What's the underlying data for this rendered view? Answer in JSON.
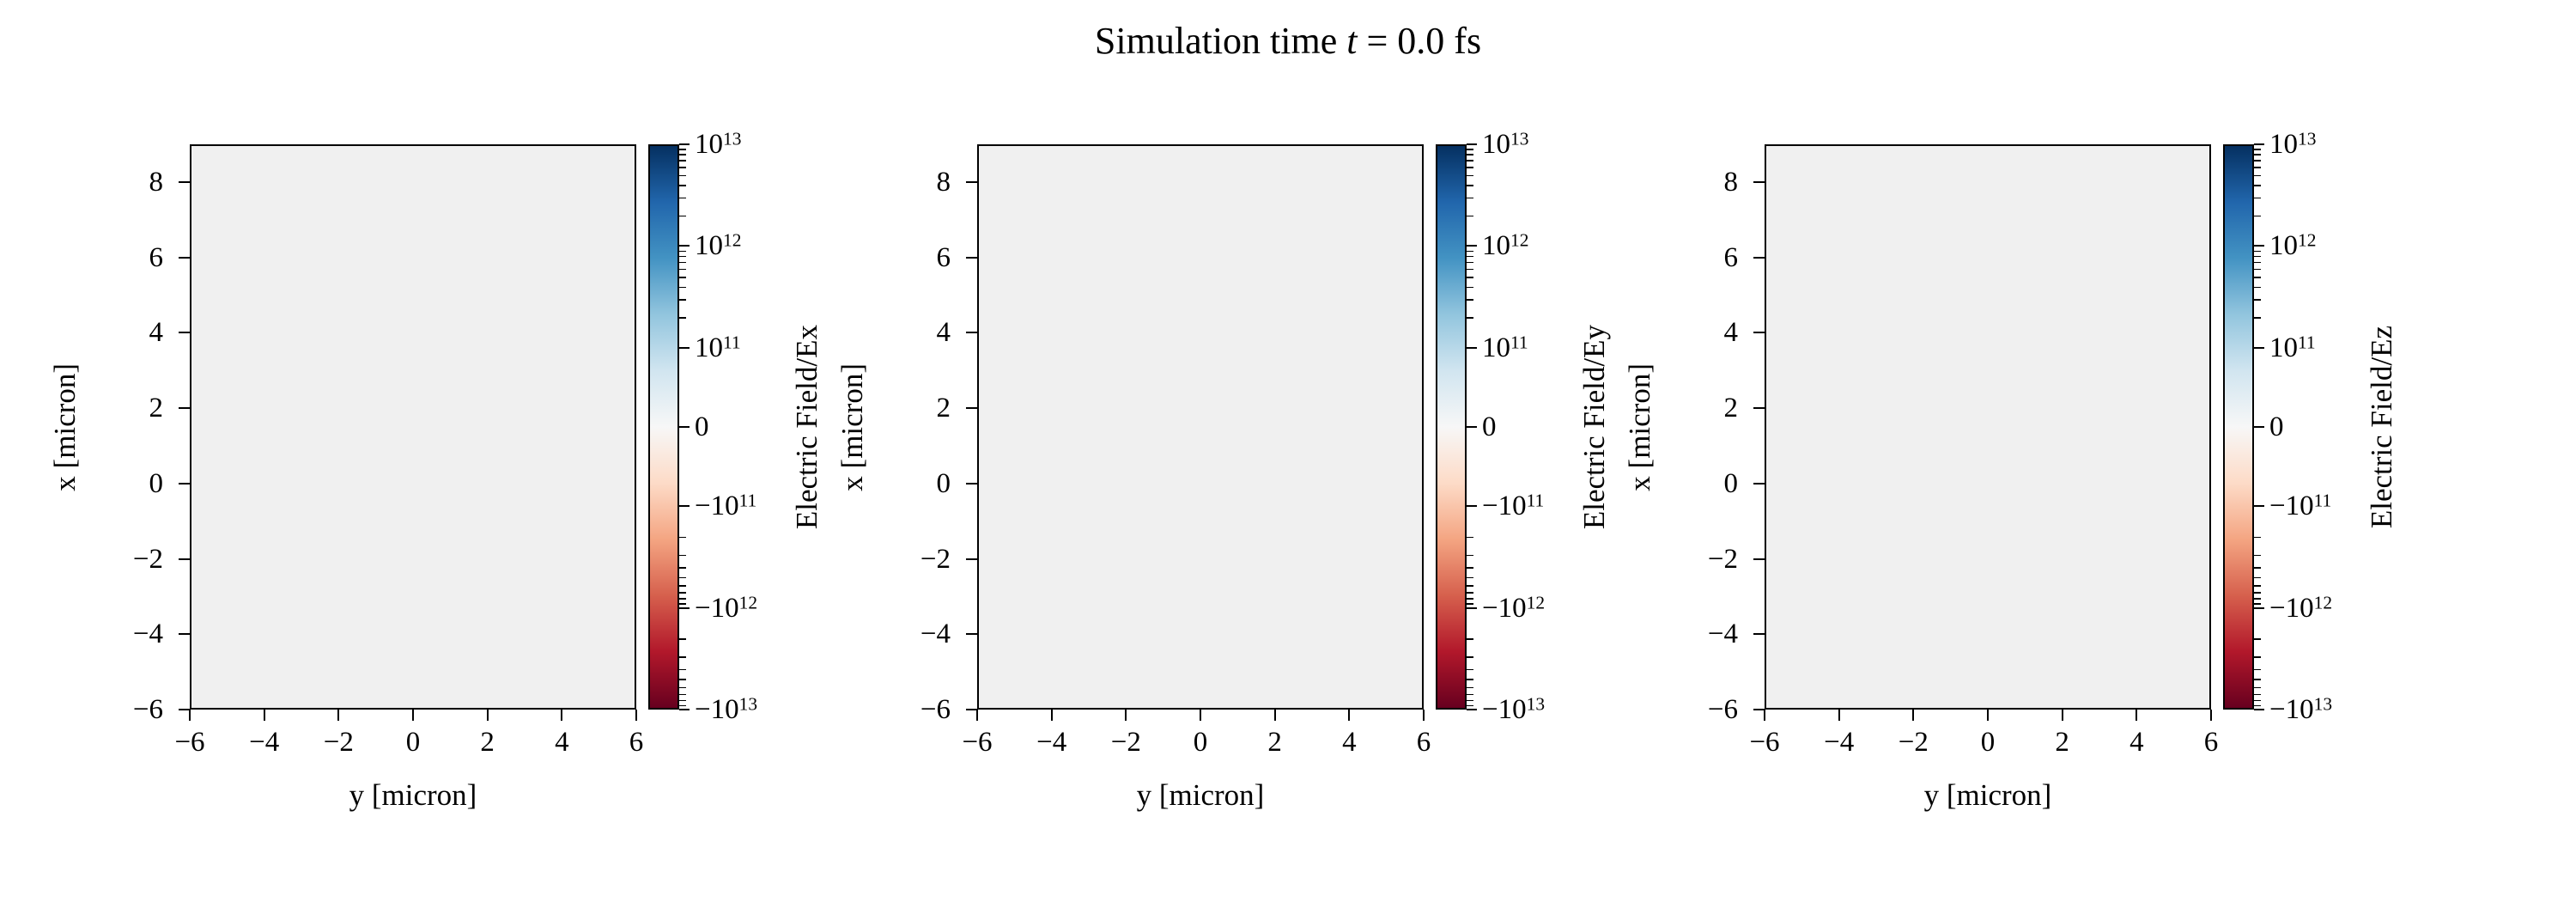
{
  "figure": {
    "title_prefix": "Simulation time ",
    "title_var": "t",
    "title_suffix": " = 0.0 fs",
    "time_fs": "0.0",
    "background": "#ffffff"
  },
  "chart_data": [
    {
      "type": "heatmap",
      "field": "Ex",
      "xlabel": "y [micron]",
      "ylabel": "x [micron]",
      "xlim": [
        -6,
        6
      ],
      "ylim": [
        -6,
        9
      ],
      "xticks": [
        -6,
        -4,
        -2,
        0,
        2,
        4,
        6
      ],
      "xtick_labels": [
        "−6",
        "−4",
        "−2",
        "0",
        "2",
        "4",
        "6"
      ],
      "yticks": [
        8,
        6,
        4,
        2,
        0,
        -2,
        -4,
        -6
      ],
      "ytick_labels": [
        "8",
        "6",
        "4",
        "2",
        "0",
        "−2",
        "−4",
        "−6"
      ],
      "uniform_value": 0,
      "plot_fill": "#f0f0f0",
      "colorbar": {
        "label": "Electric Field/Ex",
        "scale": "symlog",
        "vmin": -10000000000000.0,
        "vmax": 10000000000000.0,
        "cmap": "RdBu",
        "gradient_top_to_bottom": [
          "#053061",
          "#2166ac",
          "#4393c3",
          "#92c5de",
          "#d1e5f0",
          "#f7f7f7",
          "#fddbc7",
          "#f4a582",
          "#d6604d",
          "#b2182b",
          "#67001f"
        ],
        "ticks": [
          {
            "value": 10000000000000.0,
            "mant": "10",
            "exp": "13",
            "frac": 0.0
          },
          {
            "value": 1000000000000.0,
            "mant": "10",
            "exp": "12",
            "frac": 0.18
          },
          {
            "value": 100000000000.0,
            "mant": "10",
            "exp": "11",
            "frac": 0.36
          },
          {
            "value": 0,
            "mant": "0",
            "exp": "",
            "frac": 0.5
          },
          {
            "value": -100000000000.0,
            "mant": "−10",
            "exp": "11",
            "frac": 0.64
          },
          {
            "value": -1000000000000.0,
            "mant": "−10",
            "exp": "12",
            "frac": 0.82
          },
          {
            "value": -10000000000000.0,
            "mant": "−10",
            "exp": "13",
            "frac": 1.0
          }
        ]
      }
    },
    {
      "type": "heatmap",
      "field": "Ey",
      "xlabel": "y [micron]",
      "ylabel": "x [micron]",
      "xlim": [
        -6,
        6
      ],
      "ylim": [
        -6,
        9
      ],
      "xticks": [
        -6,
        -4,
        -2,
        0,
        2,
        4,
        6
      ],
      "xtick_labels": [
        "−6",
        "−4",
        "−2",
        "0",
        "2",
        "4",
        "6"
      ],
      "yticks": [
        8,
        6,
        4,
        2,
        0,
        -2,
        -4,
        -6
      ],
      "ytick_labels": [
        "8",
        "6",
        "4",
        "2",
        "0",
        "−2",
        "−4",
        "−6"
      ],
      "uniform_value": 0,
      "plot_fill": "#f0f0f0",
      "colorbar": {
        "label": "Electric Field/Ey",
        "scale": "symlog",
        "vmin": -10000000000000.0,
        "vmax": 10000000000000.0,
        "cmap": "RdBu",
        "gradient_top_to_bottom": [
          "#053061",
          "#2166ac",
          "#4393c3",
          "#92c5de",
          "#d1e5f0",
          "#f7f7f7",
          "#fddbc7",
          "#f4a582",
          "#d6604d",
          "#b2182b",
          "#67001f"
        ],
        "ticks": [
          {
            "value": 10000000000000.0,
            "mant": "10",
            "exp": "13",
            "frac": 0.0
          },
          {
            "value": 1000000000000.0,
            "mant": "10",
            "exp": "12",
            "frac": 0.18
          },
          {
            "value": 100000000000.0,
            "mant": "10",
            "exp": "11",
            "frac": 0.36
          },
          {
            "value": 0,
            "mant": "0",
            "exp": "",
            "frac": 0.5
          },
          {
            "value": -100000000000.0,
            "mant": "−10",
            "exp": "11",
            "frac": 0.64
          },
          {
            "value": -1000000000000.0,
            "mant": "−10",
            "exp": "12",
            "frac": 0.82
          },
          {
            "value": -10000000000000.0,
            "mant": "−10",
            "exp": "13",
            "frac": 1.0
          }
        ]
      }
    },
    {
      "type": "heatmap",
      "field": "Ez",
      "xlabel": "y [micron]",
      "ylabel": "x [micron]",
      "xlim": [
        -6,
        6
      ],
      "ylim": [
        -6,
        9
      ],
      "xticks": [
        -6,
        -4,
        -2,
        0,
        2,
        4,
        6
      ],
      "xtick_labels": [
        "−6",
        "−4",
        "−2",
        "0",
        "2",
        "4",
        "6"
      ],
      "yticks": [
        8,
        6,
        4,
        2,
        0,
        -2,
        -4,
        -6
      ],
      "ytick_labels": [
        "8",
        "6",
        "4",
        "2",
        "0",
        "−2",
        "−4",
        "−6"
      ],
      "uniform_value": 0,
      "plot_fill": "#f0f0f0",
      "colorbar": {
        "label": "Electric Field/Ez",
        "scale": "symlog",
        "vmin": -10000000000000.0,
        "vmax": 10000000000000.0,
        "cmap": "RdBu",
        "gradient_top_to_bottom": [
          "#053061",
          "#2166ac",
          "#4393c3",
          "#92c5de",
          "#d1e5f0",
          "#f7f7f7",
          "#fddbc7",
          "#f4a582",
          "#d6604d",
          "#b2182b",
          "#67001f"
        ],
        "ticks": [
          {
            "value": 10000000000000.0,
            "mant": "10",
            "exp": "13",
            "frac": 0.0
          },
          {
            "value": 1000000000000.0,
            "mant": "10",
            "exp": "12",
            "frac": 0.18
          },
          {
            "value": 100000000000.0,
            "mant": "10",
            "exp": "11",
            "frac": 0.36
          },
          {
            "value": 0,
            "mant": "0",
            "exp": "",
            "frac": 0.5
          },
          {
            "value": -100000000000.0,
            "mant": "−10",
            "exp": "11",
            "frac": 0.64
          },
          {
            "value": -1000000000000.0,
            "mant": "−10",
            "exp": "12",
            "frac": 0.82
          },
          {
            "value": -10000000000000.0,
            "mant": "−10",
            "exp": "13",
            "frac": 1.0
          }
        ]
      }
    }
  ]
}
